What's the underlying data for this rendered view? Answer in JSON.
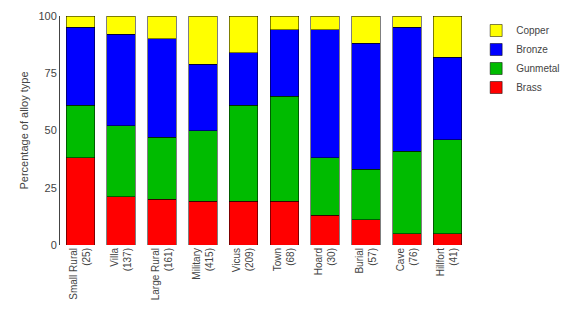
{
  "chart_data": {
    "type": "bar",
    "stacked": true,
    "categories": [
      "Small Rural\n(25)",
      "Villa\n(137)",
      "Large Rural\n(161)",
      "Military\n(415)",
      "Vicus\n(209)",
      "Town\n(68)",
      "Hoard\n(30)",
      "Burial\n(57)",
      "Cave\n(76)",
      "Hillfort\n(41)"
    ],
    "series": [
      {
        "name": "Brass",
        "color": "#ff0000",
        "values": [
          38,
          21,
          20,
          19,
          19,
          19,
          13,
          11,
          5,
          5
        ]
      },
      {
        "name": "Gunmetal",
        "color": "#00bb00",
        "values": [
          23,
          31,
          27,
          31,
          42,
          46,
          25,
          22,
          36,
          41
        ]
      },
      {
        "name": "Bronze",
        "color": "#0000ff",
        "values": [
          34,
          40,
          43,
          29,
          23,
          29,
          56,
          55,
          54,
          36
        ]
      },
      {
        "name": "Copper",
        "color": "#ffff00",
        "values": [
          5,
          8,
          10,
          21,
          16,
          6,
          6,
          12,
          5,
          18
        ]
      }
    ],
    "ylabel": "Percentage of alloy type",
    "ylim": [
      0,
      100
    ],
    "yticks": [
      0,
      25,
      50,
      75,
      100
    ],
    "grid": false,
    "legend": "right"
  }
}
